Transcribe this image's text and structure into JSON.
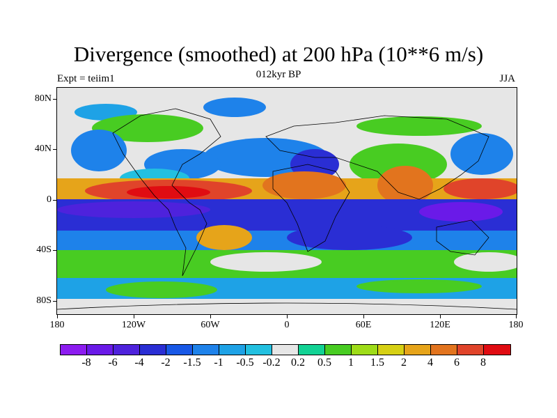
{
  "title": "Divergence (smoothed) at 200 hPa (10**6 m/s)",
  "subtitle_left": "Expt = teiim1",
  "subtitle_center": "012kyr BP",
  "subtitle_right": "JJA",
  "y_ticks": [
    "80N",
    "40N",
    "0",
    "40S",
    "80S"
  ],
  "x_ticks": [
    "180",
    "120W",
    "60W",
    "0",
    "60E",
    "120E",
    "180"
  ],
  "colorbar": {
    "colors": [
      "#8c1cf0",
      "#6a1ae8",
      "#4e22dc",
      "#2a2ed4",
      "#1858e6",
      "#1e82ea",
      "#1ea2e6",
      "#22c0e0",
      "#e6e6e6",
      "#12d294",
      "#48cc22",
      "#9edc18",
      "#d6d014",
      "#e6a41a",
      "#e2741e",
      "#e0442a",
      "#e00c12"
    ],
    "labels": [
      "-8",
      "-6",
      "-4",
      "-2",
      "-1.5",
      "-1",
      "-0.5",
      "-0.2",
      "0.2",
      "0.5",
      "1",
      "1.5",
      "2",
      "4",
      "6",
      "8"
    ]
  }
}
